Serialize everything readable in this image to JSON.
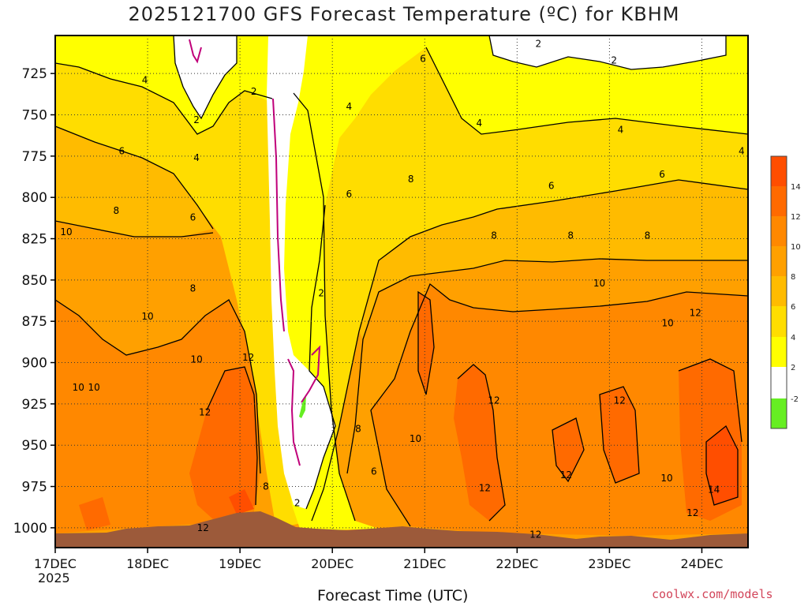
{
  "colors": {
    "lt_m2": "#66ee22",
    "m2_2": "#ffffff",
    "2_4": "#ffff00",
    "4_6": "#ffdd00",
    "6_8": "#ffbb00",
    "8_10": "#ffa000",
    "10_12": "#ff8800",
    "12_14": "#ff6a00",
    "gt_14": "#ff4e00",
    "terrain": "#9c5a3a",
    "freezing_line": "#c0007a"
  },
  "chart_data": {
    "type": "heatmap",
    "title": "2025121700 GFS Forecast Temperature (ºC) for KBHM",
    "xlabel": "Forecast Time (UTC)",
    "ylabel": "",
    "x_ticks": [
      "17DEC",
      "18DEC",
      "19DEC",
      "20DEC",
      "21DEC",
      "22DEC",
      "23DEC",
      "24DEC"
    ],
    "x_year": "2025",
    "y_ticks": [
      725,
      750,
      775,
      800,
      825,
      850,
      875,
      900,
      925,
      950,
      975,
      1000
    ],
    "ylim": [
      1012,
      702
    ],
    "xlim": [
      0,
      7.5
    ],
    "grid": true,
    "colorbar_ticks": [
      14,
      12,
      10,
      8,
      6,
      4,
      2,
      -2
    ],
    "contour_labels": [
      {
        "text": "2",
        "x": 5.23,
        "p": 707
      },
      {
        "text": "2",
        "x": 6.05,
        "p": 717
      },
      {
        "text": "6",
        "x": 3.98,
        "p": 716
      },
      {
        "text": "4",
        "x": 0.97,
        "p": 729
      },
      {
        "text": "2",
        "x": 2.15,
        "p": 736
      },
      {
        "text": "4",
        "x": 3.18,
        "p": 745
      },
      {
        "text": "2",
        "x": 1.53,
        "p": 753
      },
      {
        "text": "4",
        "x": 4.59,
        "p": 755
      },
      {
        "text": "4",
        "x": 6.12,
        "p": 759
      },
      {
        "text": "6",
        "x": 0.72,
        "p": 772
      },
      {
        "text": "4",
        "x": 1.53,
        "p": 776
      },
      {
        "text": "4",
        "x": 7.43,
        "p": 772
      },
      {
        "text": "6",
        "x": 6.57,
        "p": 786
      },
      {
        "text": "8",
        "x": 3.85,
        "p": 789
      },
      {
        "text": "6",
        "x": 5.37,
        "p": 793
      },
      {
        "text": "6",
        "x": 3.18,
        "p": 798
      },
      {
        "text": "8",
        "x": 0.66,
        "p": 808
      },
      {
        "text": "6",
        "x": 1.49,
        "p": 812
      },
      {
        "text": "8",
        "x": 4.75,
        "p": 823
      },
      {
        "text": "8",
        "x": 5.58,
        "p": 823
      },
      {
        "text": "8",
        "x": 6.41,
        "p": 823
      },
      {
        "text": "10",
        "x": 0.12,
        "p": 821
      },
      {
        "text": "10",
        "x": 5.89,
        "p": 852
      },
      {
        "text": "8",
        "x": 1.49,
        "p": 855
      },
      {
        "text": "2",
        "x": 2.88,
        "p": 858
      },
      {
        "text": "12",
        "x": 6.93,
        "p": 870
      },
      {
        "text": "10",
        "x": 1.0,
        "p": 872
      },
      {
        "text": "10",
        "x": 6.63,
        "p": 876
      },
      {
        "text": "12",
        "x": 2.09,
        "p": 897
      },
      {
        "text": "10",
        "x": 1.53,
        "p": 898
      },
      {
        "text": "10",
        "x": 0.25,
        "p": 915
      },
      {
        "text": "10",
        "x": 0.42,
        "p": 915
      },
      {
        "text": "12",
        "x": 4.75,
        "p": 923
      },
      {
        "text": "12",
        "x": 6.11,
        "p": 923
      },
      {
        "text": "12",
        "x": 1.62,
        "p": 930
      },
      {
        "text": "8",
        "x": 3.28,
        "p": 940
      },
      {
        "text": "10",
        "x": 3.9,
        "p": 946
      },
      {
        "text": "12",
        "x": 5.53,
        "p": 968
      },
      {
        "text": "6",
        "x": 3.45,
        "p": 966
      },
      {
        "text": "10",
        "x": 6.62,
        "p": 970
      },
      {
        "text": "8",
        "x": 2.28,
        "p": 975
      },
      {
        "text": "12",
        "x": 4.65,
        "p": 976
      },
      {
        "text": "14",
        "x": 7.13,
        "p": 977
      },
      {
        "text": "2",
        "x": 2.62,
        "p": 985
      },
      {
        "text": "12",
        "x": 6.9,
        "p": 991
      },
      {
        "text": "12",
        "x": 1.6,
        "p": 1000
      },
      {
        "text": "12",
        "x": 5.2,
        "p": 1004
      }
    ]
  },
  "footer": {
    "credit": "coolwx.com/models"
  }
}
